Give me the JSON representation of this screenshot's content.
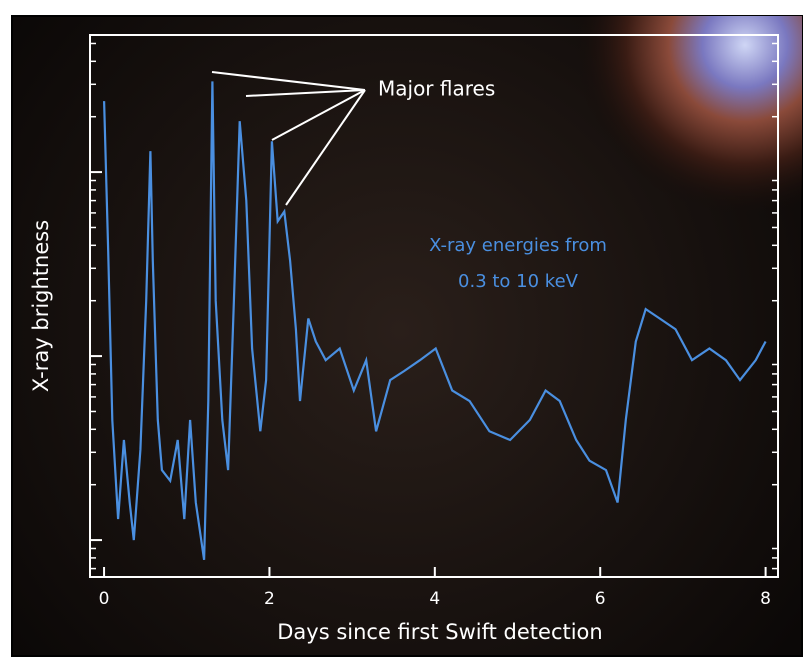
{
  "chart_data": {
    "type": "line",
    "xlabel": "Days since first Swift detection",
    "ylabel": "X-ray brightness",
    "annotations": [
      "Major flares",
      "X-ray energies from",
      "0.3 to 10 keV"
    ],
    "x": [
      0,
      0.05,
      0.1,
      0.17,
      0.24,
      0.31,
      0.36,
      0.44,
      0.51,
      0.56,
      0.59,
      0.65,
      0.7,
      0.8,
      0.89,
      0.97,
      1.04,
      1.11,
      1.21,
      1.26,
      1.31,
      1.35,
      1.43,
      1.5,
      1.57,
      1.64,
      1.72,
      1.79,
      1.89,
      1.96,
      2.03,
      2.1,
      2.18,
      2.25,
      2.32,
      2.37,
      2.47,
      2.56,
      2.68,
      2.85,
      3.02,
      3.17,
      3.29,
      3.46,
      3.63,
      3.82,
      4.01,
      4.21,
      4.42,
      4.66,
      4.91,
      5.15,
      5.34,
      5.51,
      5.71,
      5.87,
      6.07,
      6.21,
      6.31,
      6.43,
      6.55,
      6.72,
      6.91,
      7.11,
      7.32,
      7.52,
      7.69,
      7.88,
      8.0
    ],
    "values": [
      243,
      37,
      4.5,
      1.3,
      3.5,
      1.6,
      1.0,
      3.1,
      20,
      130,
      33,
      4.5,
      2.4,
      2.1,
      3.5,
      1.3,
      4.5,
      1.6,
      0.78,
      5.7,
      311,
      20,
      4.5,
      2.4,
      20,
      189,
      70,
      11,
      3.9,
      7.4,
      147,
      54,
      61,
      33,
      14,
      5.7,
      16,
      12,
      9.5,
      11,
      6.5,
      9.5,
      3.9,
      7.4,
      8.3,
      9.5,
      11,
      6.5,
      5.7,
      3.9,
      3.5,
      4.5,
      6.5,
      5.7,
      3.5,
      2.7,
      2.4,
      1.6,
      4.5,
      12,
      18,
      16,
      14,
      9.5,
      11,
      9.5,
      7.4,
      9.5,
      12
    ],
    "color": "#4a8fe0",
    "xlim": [
      -0.17,
      8.15
    ],
    "xticks": [
      0,
      2,
      4,
      6,
      8
    ],
    "ylim": [
      0.63,
      556
    ],
    "yticks": [
      1,
      10,
      100
    ],
    "log_y": true
  }
}
